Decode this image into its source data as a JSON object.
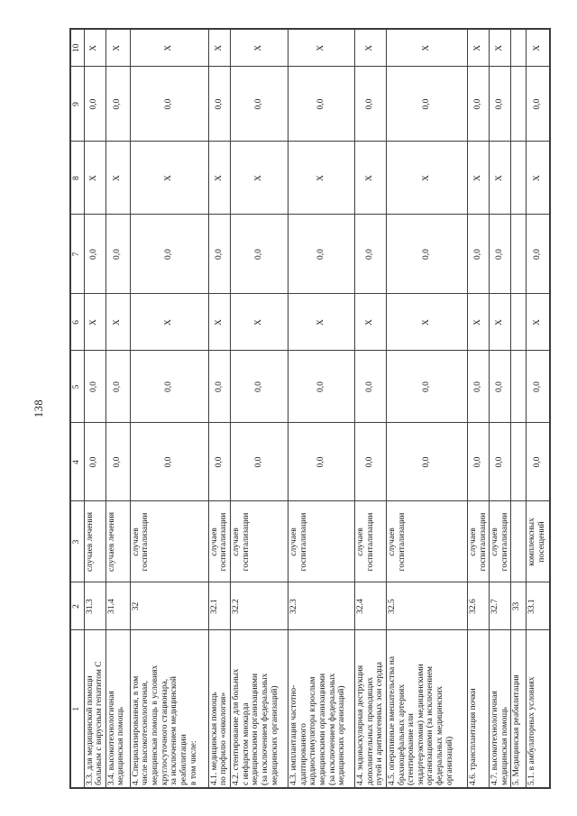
{
  "page": {
    "number": "138"
  },
  "table": {
    "column_headers": [
      "1",
      "2",
      "3",
      "4",
      "5",
      "6",
      "7",
      "8",
      "9",
      "10"
    ],
    "rows": [
      {
        "name": "3.3. для медицинской помощи\nбольным с вирусным гепатитом С",
        "line_no": "31.3",
        "unit": "случаев лечения",
        "values": [
          "0,0",
          "0,0",
          "X",
          "0,0",
          "X",
          "0,0",
          "X"
        ]
      },
      {
        "name": "3.4. высокотехнологичная\nмедицинская помощь",
        "line_no": "31.4",
        "unit": "случаев лечения",
        "values": [
          "0,0",
          "0,0",
          "X",
          "0,0",
          "X",
          "0,0",
          "X"
        ]
      },
      {
        "name": "4. Специализированная, в том\nчисле высокотехнологичная,\nмедицинская помощь в условиях\nкруглосуточного стационара,\nза исключением медицинской\nреабилитации\nв том числе:",
        "line_no": "32",
        "unit": "случаев\nгоспитализации",
        "values": [
          "0,0",
          "0,0",
          "X",
          "0,0",
          "X",
          "0,0",
          "X"
        ]
      },
      {
        "name": "4.1. медицинская помощь\nпо профилю «онкология»",
        "line_no": "32.1",
        "unit": "случаев\nгоспитализации",
        "values": [
          "0,0",
          "0,0",
          "X",
          "0,0",
          "X",
          "0,0",
          "X"
        ]
      },
      {
        "name": "4.2. стентирование для больных\nс инфарктом миокарда\nмедицинскими организациями\n(за исключением федеральных\nмедицинских организаций)",
        "line_no": "32.2",
        "unit": "случаев\nгоспитализации",
        "values": [
          "0,0",
          "0,0",
          "X",
          "0,0",
          "X",
          "0,0",
          "X"
        ]
      },
      {
        "name": "4.3. имплантация частотно-\nадаптированного\nкардиостимулятора взрослым\nмедицинскими организациями\n(за исключением федеральных\nмедицинских организаций)",
        "line_no": "32.3",
        "unit": "случаев\nгоспитализации",
        "values": [
          "0,0",
          "0,0",
          "X",
          "0,0",
          "X",
          "0,0",
          "X"
        ]
      },
      {
        "name": "4.4. эндоваскулярная деструкция\nдополнительных проводящих\nпутей и аритмогенных зон сердца",
        "line_no": "32.4",
        "unit": "случаев\nгоспитализации",
        "values": [
          "0,0",
          "0,0",
          "X",
          "0,0",
          "X",
          "0,0",
          "X"
        ]
      },
      {
        "name": "4.5. оперативные вмешательства на\nбрахиоцефальных артериях\n(стентирование или\nэндартерэктомия) медицинскими\nорганизациями (за исключением\nфедеральных медицинских\nорганизаций)",
        "line_no": "32.5",
        "unit": "случаев\nгоспитализации",
        "values": [
          "0,0",
          "0,0",
          "X",
          "0,0",
          "X",
          "0,0",
          "X"
        ]
      },
      {
        "name": "4.6. трансплантация почки",
        "line_no": "32.6",
        "unit": "случаев\nгоспитализации",
        "values": [
          "0,0",
          "0,0",
          "X",
          "0,0",
          "X",
          "0,0",
          "X"
        ]
      },
      {
        "name": "4.7. высокотехнологичная\nмедицинская помощь",
        "line_no": "32.7",
        "unit": "случаев\nгоспитализации",
        "values": [
          "0,0",
          "0,0",
          "X",
          "0,0",
          "X",
          "0,0",
          "X"
        ]
      },
      {
        "name": "5. Медицинская реабилитация",
        "line_no": "33",
        "unit": "",
        "values": [
          "",
          "",
          "",
          "",
          "",
          "",
          ""
        ]
      },
      {
        "name": "5.1. в амбулаторных условиях",
        "line_no": "33.1",
        "unit": "комплексных\nпосещений",
        "values": [
          "0,0",
          "0,0",
          "X",
          "0,0",
          "X",
          "0,0",
          "X"
        ]
      }
    ]
  }
}
